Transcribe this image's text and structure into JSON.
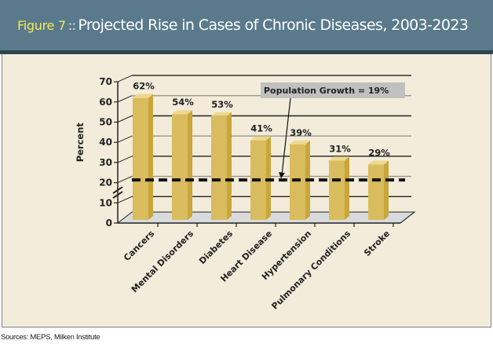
{
  "header": {
    "figure_label": "Figure 7",
    "separator": "::",
    "title": "Projected Rise in Cases of Chronic Diseases, 2003-2023"
  },
  "colors": {
    "header_bg": "#5a7a8c",
    "header_bar": "#2f4450",
    "panel_bg": "#f3ecda",
    "figure_label": "#f2ea5a",
    "bar_front": "#d9bc5e",
    "bar_side": "#c9a63a",
    "bar_top": "#ecd98f",
    "floor": "#d9dadc",
    "annotation_bg": "#c0c0c0"
  },
  "source": "Sources: MEPS, Milken Institute",
  "chart_data": {
    "type": "bar",
    "title": "Projected Rise in Cases of Chronic Diseases, 2003-2023",
    "xlabel": "",
    "ylabel": "Percent",
    "ylim": [
      0,
      70
    ],
    "yticks": [
      0,
      10,
      20,
      30,
      40,
      50,
      60,
      70
    ],
    "grid": true,
    "categories": [
      "Cancers",
      "Mental Disorders",
      "Diabetes",
      "Heart Disease",
      "Hypertension",
      "Pulmonary Conditions",
      "Stroke"
    ],
    "values": [
      62,
      54,
      53,
      41,
      39,
      31,
      29
    ],
    "value_labels": [
      "62%",
      "54%",
      "53%",
      "41%",
      "39%",
      "31%",
      "29%"
    ],
    "reference_line": {
      "value": 19,
      "style": "dashed",
      "label": "Population Growth = 19%"
    },
    "axis_break": true,
    "style": "3d"
  }
}
